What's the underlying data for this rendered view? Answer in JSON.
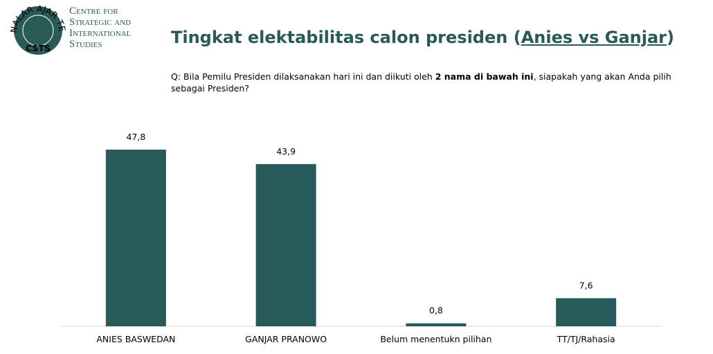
{
  "logo": {
    "lines": [
      "Centre for",
      "Strategic and",
      "International",
      "Studies"
    ],
    "motto": "NALAR AJAR TERUSAN BUDI",
    "seal": "CSTS"
  },
  "chart_data": {
    "type": "bar",
    "title_parts": [
      "Tingkat elektabilitas calon presiden (",
      "Anies vs Ganjar",
      ")"
    ],
    "question_parts": [
      "Q: Bila Pemilu Presiden dilaksanakan hari ini dan diikuti oleh ",
      "2 nama di bawah ini",
      ", siapakah yang akan Anda pilih sebagai Presiden?"
    ],
    "categories": [
      "ANIES BASWEDAN",
      "GANJAR PRANOWO",
      "Belum menentukn pilihan",
      "TT/TJ/Rahasia"
    ],
    "values": [
      47.8,
      43.9,
      0.8,
      7.6
    ],
    "value_labels": [
      "47,8",
      "43,9",
      "0,8",
      "7,6"
    ],
    "color": "#275a5a"
  }
}
